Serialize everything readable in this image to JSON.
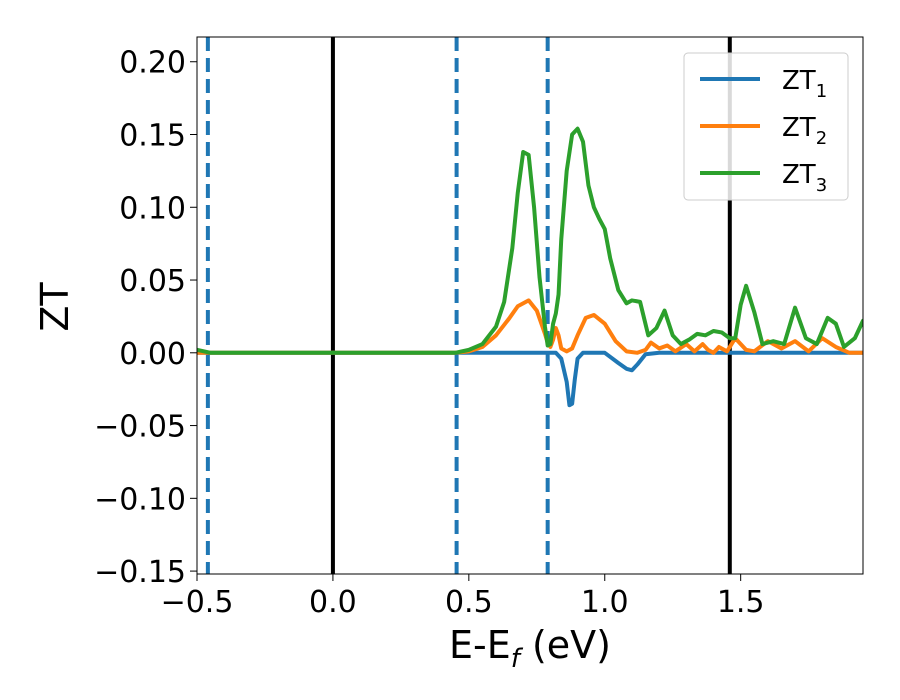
{
  "chart_data": {
    "type": "line",
    "title": "",
    "xlabel": {
      "main": "E-E",
      "sub": "f",
      "unit": " (eV)"
    },
    "ylabel": "ZT",
    "xlim": [
      -0.5,
      1.95
    ],
    "ylim": [
      -0.152,
      0.217
    ],
    "xticks": [
      -0.5,
      0.0,
      0.5,
      1.0,
      1.5
    ],
    "xtick_labels": [
      "−0.5",
      "0.0",
      "0.5",
      "1.0",
      "1.5"
    ],
    "yticks": [
      -0.15,
      -0.1,
      -0.05,
      0.0,
      0.05,
      0.1,
      0.15,
      0.2
    ],
    "ytick_labels": [
      "−0.15",
      "−0.10",
      "−0.05",
      "0.00",
      "0.05",
      "0.10",
      "0.15",
      "0.20"
    ],
    "grid": false,
    "legend_position": "top-right",
    "vlines": [
      {
        "x": -0.46,
        "style": "dashed",
        "color": "#1f77b4"
      },
      {
        "x": 0.0,
        "style": "solid",
        "color": "#000000"
      },
      {
        "x": 0.455,
        "style": "dashed",
        "color": "#1f77b4"
      },
      {
        "x": 0.79,
        "style": "dashed",
        "color": "#1f77b4"
      },
      {
        "x": 1.46,
        "style": "solid",
        "color": "#000000"
      }
    ],
    "series": [
      {
        "name": "ZT",
        "sub": "1",
        "color": "#1f77b4",
        "x": [
          -0.5,
          0.0,
          0.5,
          0.8,
          0.82,
          0.84,
          0.86,
          0.87,
          0.88,
          0.89,
          0.9,
          0.92,
          0.95,
          1.0,
          1.05,
          1.08,
          1.1,
          1.12,
          1.15,
          1.2,
          1.95
        ],
        "y": [
          0.0,
          0.0,
          0.0,
          0.0,
          0.0,
          -0.004,
          -0.02,
          -0.036,
          -0.035,
          -0.018,
          -0.004,
          0.0,
          0.0,
          0.0,
          -0.007,
          -0.011,
          -0.012,
          -0.008,
          -0.001,
          0.0,
          0.0
        ]
      },
      {
        "name": "ZT",
        "sub": "2",
        "color": "#ff7f0e",
        "x": [
          -0.5,
          0.0,
          0.45,
          0.5,
          0.55,
          0.6,
          0.65,
          0.68,
          0.72,
          0.75,
          0.78,
          0.79,
          0.8,
          0.81,
          0.82,
          0.83,
          0.84,
          0.86,
          0.88,
          0.9,
          0.93,
          0.96,
          1.0,
          1.04,
          1.08,
          1.12,
          1.15,
          1.17,
          1.2,
          1.23,
          1.26,
          1.3,
          1.33,
          1.36,
          1.38,
          1.4,
          1.42,
          1.45,
          1.48,
          1.52,
          1.55,
          1.6,
          1.65,
          1.7,
          1.75,
          1.8,
          1.85,
          1.9,
          1.95
        ],
        "y": [
          0.0,
          0.0,
          0.0,
          0.001,
          0.004,
          0.012,
          0.024,
          0.032,
          0.036,
          0.029,
          0.013,
          0.007,
          0.004,
          0.009,
          0.017,
          0.012,
          0.003,
          0.001,
          0.003,
          0.012,
          0.024,
          0.026,
          0.02,
          0.008,
          0.001,
          0.0,
          0.002,
          0.007,
          0.003,
          0.005,
          0.001,
          0.006,
          0.001,
          0.006,
          0.002,
          0.0,
          0.004,
          0.001,
          0.01,
          0.002,
          0.001,
          0.008,
          0.003,
          0.008,
          0.001,
          0.01,
          0.004,
          0.0,
          0.0
        ]
      },
      {
        "name": "ZT",
        "sub": "3",
        "color": "#2ca02c",
        "x": [
          -0.5,
          -0.45,
          0.0,
          0.45,
          0.5,
          0.55,
          0.6,
          0.63,
          0.66,
          0.68,
          0.7,
          0.72,
          0.74,
          0.76,
          0.78,
          0.79,
          0.8,
          0.81,
          0.82,
          0.83,
          0.84,
          0.86,
          0.88,
          0.9,
          0.92,
          0.94,
          0.96,
          0.98,
          1.0,
          1.02,
          1.05,
          1.08,
          1.1,
          1.13,
          1.16,
          1.19,
          1.22,
          1.25,
          1.28,
          1.31,
          1.34,
          1.37,
          1.4,
          1.43,
          1.46,
          1.48,
          1.5,
          1.52,
          1.55,
          1.58,
          1.62,
          1.66,
          1.7,
          1.74,
          1.78,
          1.82,
          1.85,
          1.88,
          1.92,
          1.95
        ],
        "y": [
          0.002,
          0.0,
          0.0,
          0.0,
          0.002,
          0.006,
          0.018,
          0.035,
          0.072,
          0.11,
          0.138,
          0.136,
          0.1,
          0.052,
          0.018,
          0.005,
          0.006,
          0.02,
          0.027,
          0.04,
          0.078,
          0.125,
          0.15,
          0.154,
          0.145,
          0.115,
          0.1,
          0.092,
          0.085,
          0.065,
          0.043,
          0.034,
          0.036,
          0.035,
          0.012,
          0.017,
          0.029,
          0.012,
          0.006,
          0.009,
          0.013,
          0.012,
          0.015,
          0.014,
          0.01,
          0.01,
          0.033,
          0.046,
          0.028,
          0.006,
          0.008,
          0.006,
          0.031,
          0.01,
          0.006,
          0.024,
          0.02,
          0.004,
          0.01,
          0.022
        ]
      }
    ]
  }
}
